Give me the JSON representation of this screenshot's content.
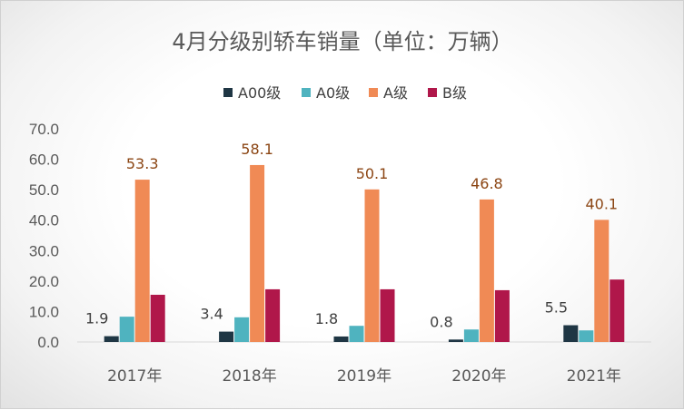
{
  "chart_data": {
    "type": "bar",
    "title": "4月分级别轿车销量（单位：万辆）",
    "categories": [
      "2017年",
      "2018年",
      "2019年",
      "2020年",
      "2021年"
    ],
    "series": [
      {
        "name": "A00级",
        "color": "#1f3644",
        "values": [
          1.9,
          3.4,
          1.8,
          0.8,
          5.5
        ],
        "labels": [
          "1.9",
          "3.4",
          "1.8",
          "0.8",
          "5.5"
        ],
        "label_color": "#404040"
      },
      {
        "name": "A0级",
        "color": "#4fb3bf",
        "values": [
          8.3,
          8.1,
          5.3,
          4.1,
          3.8
        ],
        "labels": null
      },
      {
        "name": "A级",
        "color": "#f08a55",
        "values": [
          53.3,
          58.1,
          50.1,
          46.8,
          40.1
        ],
        "labels": [
          "53.3",
          "58.1",
          "50.1",
          "46.8",
          "40.1"
        ],
        "label_color": "#8b4513"
      },
      {
        "name": "B级",
        "color": "#b0174a",
        "values": [
          15.5,
          17.3,
          17.3,
          17.0,
          20.5
        ],
        "labels": null
      }
    ],
    "yticks": [
      "0.0",
      "10.0",
      "20.0",
      "30.0",
      "40.0",
      "50.0",
      "60.0",
      "70.0"
    ],
    "ylim": [
      0,
      70
    ],
    "legend_position": "top-center",
    "grid": false
  }
}
